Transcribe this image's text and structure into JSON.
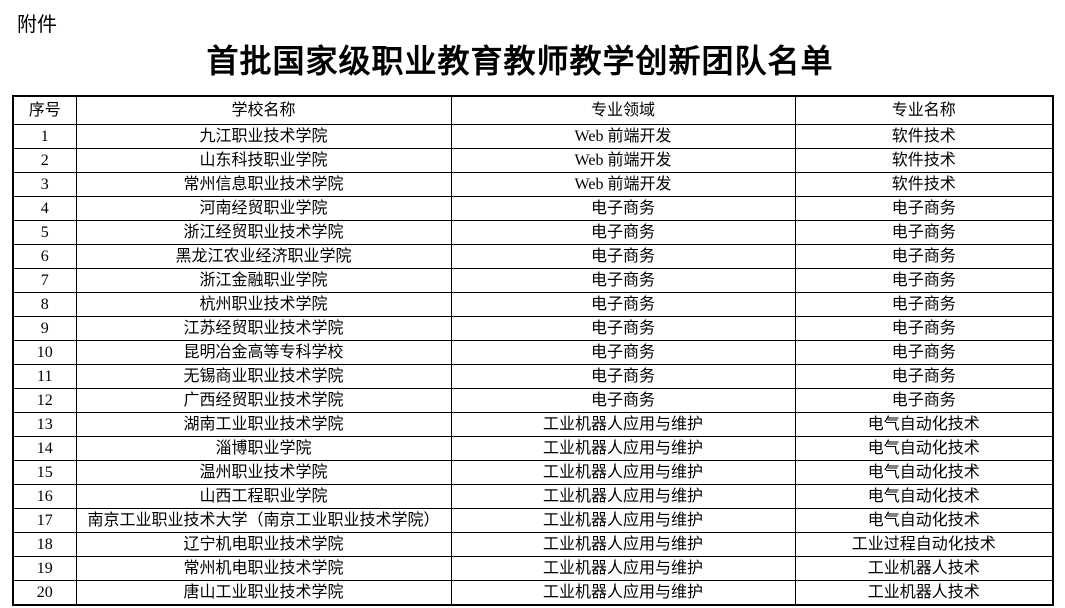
{
  "page": {
    "attachment_label": "附件",
    "title": "首批国家级职业教育教师教学创新团队名单",
    "text_color": "#000000",
    "background_color": "#ffffff"
  },
  "table": {
    "headers": [
      "序号",
      "学校名称",
      "专业领域",
      "专业名称"
    ],
    "rows": [
      [
        "1",
        "九江职业技术学院",
        "Web 前端开发",
        "软件技术"
      ],
      [
        "2",
        "山东科技职业学院",
        "Web 前端开发",
        "软件技术"
      ],
      [
        "3",
        "常州信息职业技术学院",
        "Web 前端开发",
        "软件技术"
      ],
      [
        "4",
        "河南经贸职业学院",
        "电子商务",
        "电子商务"
      ],
      [
        "5",
        "浙江经贸职业技术学院",
        "电子商务",
        "电子商务"
      ],
      [
        "6",
        "黑龙江农业经济职业学院",
        "电子商务",
        "电子商务"
      ],
      [
        "7",
        "浙江金融职业学院",
        "电子商务",
        "电子商务"
      ],
      [
        "8",
        "杭州职业技术学院",
        "电子商务",
        "电子商务"
      ],
      [
        "9",
        "江苏经贸职业技术学院",
        "电子商务",
        "电子商务"
      ],
      [
        "10",
        "昆明冶金高等专科学校",
        "电子商务",
        "电子商务"
      ],
      [
        "11",
        "无锡商业职业技术学院",
        "电子商务",
        "电子商务"
      ],
      [
        "12",
        "广西经贸职业技术学院",
        "电子商务",
        "电子商务"
      ],
      [
        "13",
        "湖南工业职业技术学院",
        "工业机器人应用与维护",
        "电气自动化技术"
      ],
      [
        "14",
        "淄博职业学院",
        "工业机器人应用与维护",
        "电气自动化技术"
      ],
      [
        "15",
        "温州职业技术学院",
        "工业机器人应用与维护",
        "电气自动化技术"
      ],
      [
        "16",
        "山西工程职业学院",
        "工业机器人应用与维护",
        "电气自动化技术"
      ],
      [
        "17",
        "南京工业职业技术大学（南京工业职业技术学院）",
        "工业机器人应用与维护",
        "电气自动化技术"
      ],
      [
        "18",
        "辽宁机电职业技术学院",
        "工业机器人应用与维护",
        "工业过程自动化技术"
      ],
      [
        "19",
        "常州机电职业技术学院",
        "工业机器人应用与维护",
        "工业机器人技术"
      ],
      [
        "20",
        "唐山工业职业技术学院",
        "工业机器人应用与维护",
        "工业机器人技术"
      ]
    ],
    "cell_names": [
      "serial-cell",
      "school-name-cell",
      "major-field-cell",
      "major-name-cell"
    ]
  }
}
